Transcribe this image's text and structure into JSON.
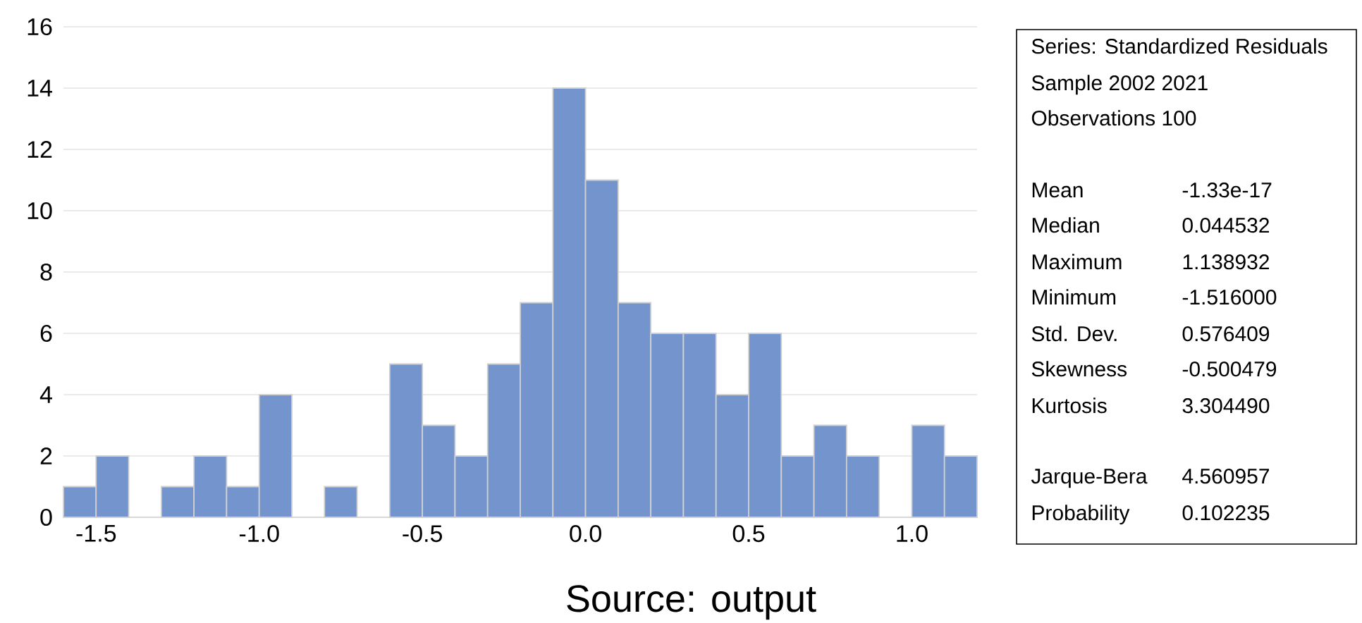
{
  "chart_data": {
    "type": "histogram",
    "color": "#7394cc",
    "bins": [
      -1.6,
      -1.5,
      -1.4,
      -1.3,
      -1.2,
      -1.1,
      -1.0,
      -0.9,
      -0.8,
      -0.7,
      -0.6,
      -0.5,
      -0.4,
      -0.3,
      -0.2,
      -0.1,
      0.0,
      0.1,
      0.2,
      0.3,
      0.4,
      0.5,
      0.6,
      0.7,
      0.8,
      0.9,
      1.0,
      1.1,
      1.2
    ],
    "values": [
      1,
      2,
      0,
      1,
      2,
      1,
      4,
      0,
      1,
      0,
      5,
      3,
      2,
      5,
      7,
      14,
      11,
      7,
      6,
      6,
      4,
      6,
      2,
      3,
      2,
      0,
      3,
      2
    ],
    "xlim": [
      -1.6,
      1.2
    ],
    "ylim": [
      0,
      16
    ],
    "xticks": [
      {
        "value": -1.5,
        "label": "-1.5"
      },
      {
        "value": -1,
        "label": "-1.0"
      },
      {
        "value": -0.5,
        "label": "-0.5"
      },
      {
        "value": 0,
        "label": "0.0"
      },
      {
        "value": 0.5,
        "label": "0.5"
      },
      {
        "value": 1,
        "label": "1.0"
      }
    ],
    "yticks": [
      0,
      2,
      4,
      6,
      8,
      10,
      12,
      14,
      16
    ],
    "grid": "y",
    "annotations": [
      "Series: Standardized Residuals",
      "Sample 2002 2021",
      "Observations 100",
      "Mean",
      "-1.33e-17",
      "Median",
      "0.044532",
      "Maximum",
      "1.138932",
      "Minimum",
      "-1.516000",
      "Std. Dev.",
      "0.576409",
      "Skewness",
      "-0.500479",
      "Kurtosis",
      "3.304490",
      "Jarque-Bera",
      "4.560957",
      "Probability",
      "0.102235",
      "Source: output"
    ]
  }
}
